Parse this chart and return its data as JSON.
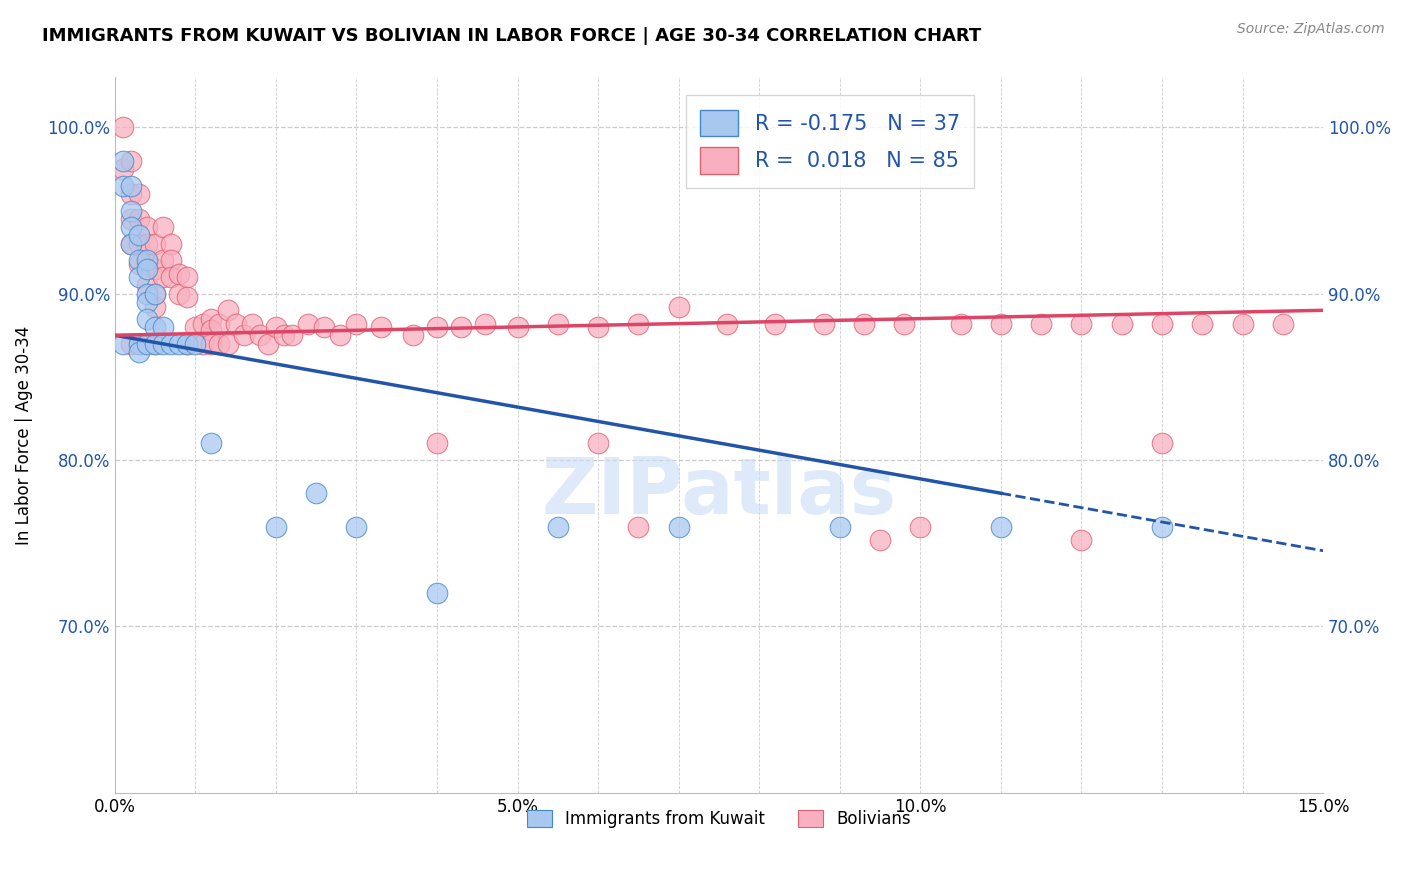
{
  "title": "IMMIGRANTS FROM KUWAIT VS BOLIVIAN IN LABOR FORCE | AGE 30-34 CORRELATION CHART",
  "source": "Source: ZipAtlas.com",
  "ylabel": "In Labor Force | Age 30-34",
  "xmin": 0.0,
  "xmax": 0.15,
  "ymin": 0.6,
  "ymax": 1.03,
  "yticks": [
    0.7,
    0.8,
    0.9,
    1.0
  ],
  "ytick_labels": [
    "70.0%",
    "80.0%",
    "90.0%",
    "100.0%"
  ],
  "xticks": [
    0.0,
    0.05,
    0.1,
    0.15
  ],
  "xtick_labels": [
    "0.0%",
    "5.0%",
    "10.0%",
    "15.0%"
  ],
  "legend_r_kuwait": "-0.175",
  "legend_n_kuwait": "37",
  "legend_r_bolivian": "0.018",
  "legend_n_bolivian": "85",
  "kuwait_color": "#A8C8F0",
  "bolivian_color": "#F8B0C0",
  "kuwait_edge_color": "#4488CC",
  "bolivian_edge_color": "#E06070",
  "kuwait_trend_color": "#2255AA",
  "bolivian_trend_color": "#DD4466",
  "watermark": "ZIPatlas",
  "kuwait_x": [
    0.001,
    0.001,
    0.001,
    0.002,
    0.002,
    0.002,
    0.002,
    0.003,
    0.003,
    0.003,
    0.003,
    0.003,
    0.004,
    0.004,
    0.004,
    0.004,
    0.004,
    0.004,
    0.005,
    0.005,
    0.005,
    0.006,
    0.006,
    0.007,
    0.008,
    0.009,
    0.01,
    0.012,
    0.02,
    0.025,
    0.03,
    0.04,
    0.055,
    0.07,
    0.09,
    0.11,
    0.13
  ],
  "kuwait_y": [
    0.98,
    0.965,
    0.87,
    0.965,
    0.95,
    0.94,
    0.93,
    0.935,
    0.92,
    0.91,
    0.87,
    0.865,
    0.92,
    0.915,
    0.9,
    0.895,
    0.885,
    0.87,
    0.9,
    0.88,
    0.87,
    0.88,
    0.87,
    0.87,
    0.87,
    0.87,
    0.87,
    0.81,
    0.76,
    0.78,
    0.76,
    0.72,
    0.76,
    0.76,
    0.76,
    0.76,
    0.76
  ],
  "bolivian_x": [
    0.001,
    0.001,
    0.002,
    0.002,
    0.002,
    0.002,
    0.002,
    0.003,
    0.003,
    0.003,
    0.003,
    0.003,
    0.004,
    0.004,
    0.004,
    0.004,
    0.005,
    0.005,
    0.005,
    0.005,
    0.005,
    0.006,
    0.006,
    0.006,
    0.007,
    0.007,
    0.007,
    0.008,
    0.008,
    0.009,
    0.009,
    0.009,
    0.01,
    0.011,
    0.011,
    0.012,
    0.012,
    0.012,
    0.013,
    0.013,
    0.014,
    0.014,
    0.015,
    0.016,
    0.017,
    0.018,
    0.019,
    0.02,
    0.021,
    0.022,
    0.024,
    0.026,
    0.028,
    0.03,
    0.033,
    0.037,
    0.04,
    0.043,
    0.046,
    0.05,
    0.055,
    0.06,
    0.065,
    0.07,
    0.076,
    0.082,
    0.088,
    0.093,
    0.098,
    0.105,
    0.11,
    0.115,
    0.12,
    0.125,
    0.13,
    0.135,
    0.14,
    0.145,
    0.06,
    0.1,
    0.12,
    0.04,
    0.065,
    0.095,
    0.13
  ],
  "bolivian_y": [
    1.0,
    0.975,
    0.98,
    0.96,
    0.945,
    0.93,
    0.87,
    0.96,
    0.945,
    0.93,
    0.918,
    0.87,
    0.94,
    0.93,
    0.918,
    0.905,
    0.93,
    0.915,
    0.9,
    0.892,
    0.87,
    0.94,
    0.92,
    0.91,
    0.93,
    0.92,
    0.91,
    0.912,
    0.9,
    0.91,
    0.898,
    0.87,
    0.88,
    0.882,
    0.87,
    0.885,
    0.878,
    0.87,
    0.882,
    0.87,
    0.89,
    0.87,
    0.882,
    0.875,
    0.882,
    0.875,
    0.87,
    0.88,
    0.875,
    0.875,
    0.882,
    0.88,
    0.875,
    0.882,
    0.88,
    0.875,
    0.88,
    0.88,
    0.882,
    0.88,
    0.882,
    0.88,
    0.882,
    0.892,
    0.882,
    0.882,
    0.882,
    0.882,
    0.882,
    0.882,
    0.882,
    0.882,
    0.882,
    0.882,
    0.882,
    0.882,
    0.882,
    0.882,
    0.81,
    0.76,
    0.752,
    0.81,
    0.76,
    0.752,
    0.81
  ]
}
